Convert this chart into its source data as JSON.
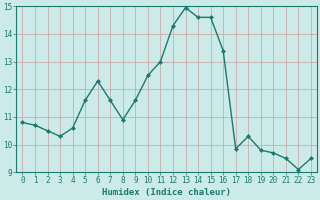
{
  "x": [
    0,
    1,
    2,
    3,
    4,
    5,
    6,
    7,
    8,
    9,
    10,
    11,
    12,
    13,
    14,
    15,
    16,
    17,
    18,
    19,
    20,
    21,
    22,
    23
  ],
  "y": [
    10.8,
    10.7,
    10.5,
    10.3,
    10.6,
    11.6,
    12.3,
    11.6,
    10.9,
    11.6,
    12.5,
    13.0,
    14.3,
    14.95,
    14.6,
    14.6,
    13.4,
    9.85,
    10.3,
    9.8,
    9.7,
    9.5,
    9.1,
    9.5
  ],
  "line_color": "#1a7a6e",
  "marker": "D",
  "marker_size": 2.0,
  "bg_color": "#cceae8",
  "grid_color": "#c8a0a0",
  "xlabel": "Humidex (Indice chaleur)",
  "ylim": [
    9,
    15
  ],
  "xlim_min": -0.5,
  "xlim_max": 23.5,
  "yticks": [
    9,
    10,
    11,
    12,
    13,
    14,
    15
  ],
  "xticks": [
    0,
    1,
    2,
    3,
    4,
    5,
    6,
    7,
    8,
    9,
    10,
    11,
    12,
    13,
    14,
    15,
    16,
    17,
    18,
    19,
    20,
    21,
    22,
    23
  ],
  "tick_fontsize": 5.5,
  "xlabel_fontsize": 6.5,
  "line_width": 1.0
}
